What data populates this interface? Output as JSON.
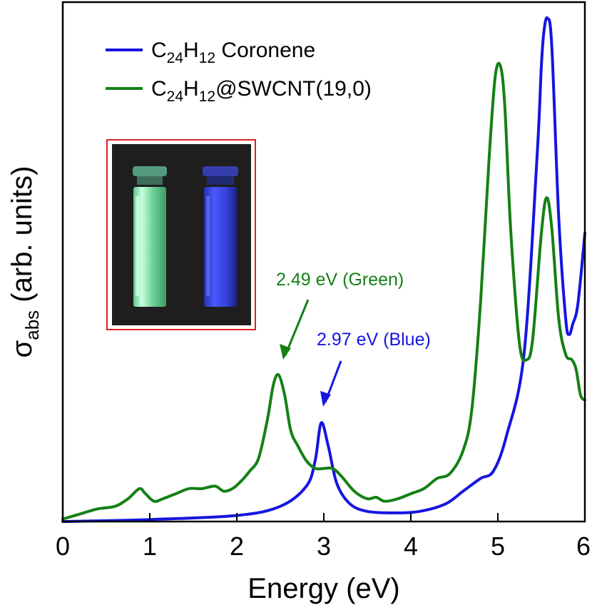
{
  "chart_data": {
    "type": "line",
    "xlabel": "Energy (eV)",
    "ylabel": "σabs (arb. units)",
    "ylabel_main": "σ",
    "ylabel_sub": "abs",
    "ylabel_rest": " (arb. units)",
    "xlim": [
      0,
      6
    ],
    "ylim": [
      0,
      1
    ],
    "xticks": [
      0,
      1,
      2,
      3,
      4,
      5,
      6
    ],
    "xtick_labels": [
      "0",
      "1",
      "2",
      "3",
      "4",
      "5",
      "6"
    ],
    "grid": false,
    "legend_position": "top-left",
    "series": [
      {
        "name": "C24H12 Coronene",
        "label_parts": {
          "c": "C",
          "n1": "24",
          "h": "H",
          "n2": "12",
          "rest": " Coronene"
        },
        "color": "#1515e0",
        "x": [
          0,
          1,
          2,
          2.5,
          2.8,
          2.9,
          2.97,
          3.05,
          3.15,
          3.3,
          3.5,
          3.8,
          4.1,
          4.4,
          4.6,
          4.8,
          4.95,
          5.1,
          5.3,
          5.45,
          5.5,
          5.53,
          5.57,
          5.62,
          5.7,
          5.78,
          5.82,
          5.86,
          5.92,
          6.0
        ],
        "y": [
          0.0,
          0.004,
          0.012,
          0.03,
          0.07,
          0.12,
          0.195,
          0.15,
          0.075,
          0.035,
          0.02,
          0.017,
          0.02,
          0.035,
          0.06,
          0.085,
          0.1,
          0.17,
          0.33,
          0.72,
          0.9,
          0.97,
          0.995,
          0.94,
          0.6,
          0.4,
          0.37,
          0.39,
          0.43,
          0.57
        ]
      },
      {
        "name": "C24H12@SWCNT(19,0)",
        "label_parts": {
          "c": "C",
          "n1": "24",
          "h": "H",
          "n2": "12",
          "rest": "@SWCNT(19,0)"
        },
        "color": "#158015",
        "x": [
          0,
          0.2,
          0.4,
          0.6,
          0.75,
          0.88,
          0.95,
          1.05,
          1.15,
          1.3,
          1.45,
          1.6,
          1.75,
          1.85,
          1.95,
          2.05,
          2.15,
          2.25,
          2.35,
          2.42,
          2.48,
          2.55,
          2.62,
          2.7,
          2.8,
          2.9,
          3.0,
          3.1,
          3.2,
          3.35,
          3.5,
          3.6,
          3.7,
          3.85,
          4.0,
          4.15,
          4.3,
          4.45,
          4.6,
          4.7,
          4.8,
          4.9,
          4.97,
          5.03,
          5.08,
          5.15,
          5.25,
          5.33,
          5.4,
          5.5,
          5.56,
          5.62,
          5.7,
          5.78,
          5.85,
          5.9,
          5.95,
          6.0
        ],
        "y": [
          0.005,
          0.015,
          0.025,
          0.03,
          0.045,
          0.065,
          0.055,
          0.04,
          0.045,
          0.055,
          0.065,
          0.065,
          0.07,
          0.06,
          0.065,
          0.08,
          0.1,
          0.125,
          0.2,
          0.27,
          0.29,
          0.25,
          0.18,
          0.15,
          0.12,
          0.105,
          0.105,
          0.105,
          0.09,
          0.06,
          0.045,
          0.048,
          0.04,
          0.045,
          0.055,
          0.065,
          0.085,
          0.095,
          0.14,
          0.22,
          0.43,
          0.72,
          0.88,
          0.9,
          0.82,
          0.57,
          0.35,
          0.32,
          0.36,
          0.57,
          0.64,
          0.58,
          0.4,
          0.33,
          0.32,
          0.3,
          0.25,
          0.24
        ]
      }
    ],
    "annotations": [
      {
        "text": "2.49 eV (Green)",
        "color": "#158015",
        "points_to_x": 2.49
      },
      {
        "text": "2.97 eV (Blue)",
        "color": "#1515e0",
        "points_to_x": 2.97
      }
    ]
  },
  "inset": {
    "description_name": "fluorescence-vials-photo",
    "colors": {
      "frame": "#e02020",
      "background": "#1e1e1e",
      "green_vial": "#7de6a8",
      "blue_vial": "#3a46e0"
    }
  }
}
